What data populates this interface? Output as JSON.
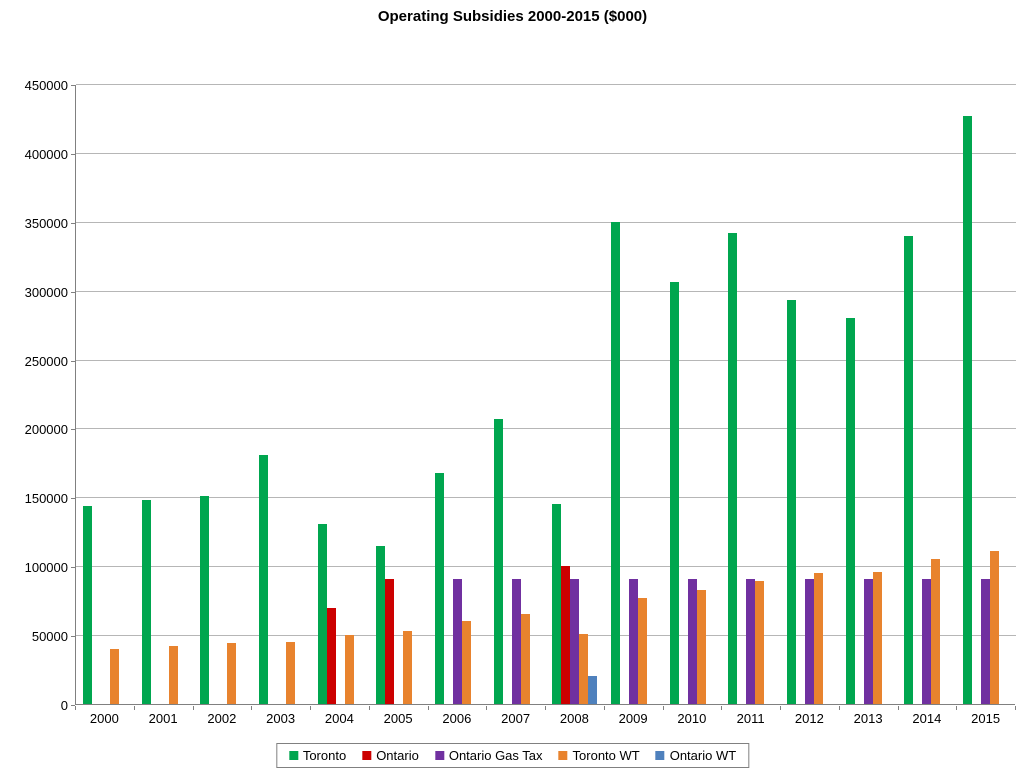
{
  "title": "Operating Subsidies 2000-2015 ($000)",
  "chart_data": {
    "type": "bar",
    "title": "Operating Subsidies 2000-2015 ($000)",
    "xlabel": "",
    "ylabel": "",
    "ylim": [
      0,
      450000
    ],
    "ytick_interval": 50000,
    "yticks": [
      0,
      50000,
      100000,
      150000,
      200000,
      250000,
      300000,
      350000,
      400000,
      450000
    ],
    "grid": true,
    "legend_position": "bottom",
    "categories": [
      "2000",
      "2001",
      "2002",
      "2003",
      "2004",
      "2005",
      "2006",
      "2007",
      "2008",
      "2009",
      "2010",
      "2011",
      "2012",
      "2013",
      "2014",
      "2015"
    ],
    "series": [
      {
        "name": "Toronto",
        "color": "#00A64F",
        "values": [
          144000,
          148000,
          151000,
          181000,
          131000,
          115000,
          168000,
          207000,
          145000,
          350000,
          306000,
          342000,
          293000,
          280000,
          340000,
          427000
        ]
      },
      {
        "name": "Ontario",
        "color": "#CC0000",
        "values": [
          0,
          0,
          0,
          0,
          70000,
          91000,
          0,
          0,
          100000,
          0,
          0,
          0,
          0,
          0,
          0,
          0
        ]
      },
      {
        "name": "Ontario Gas Tax",
        "color": "#7030A0",
        "values": [
          0,
          0,
          0,
          0,
          0,
          0,
          91000,
          91000,
          91000,
          91000,
          91000,
          91000,
          91000,
          91000,
          91000,
          91000
        ]
      },
      {
        "name": "Toronto WT",
        "color": "#E8832E",
        "values": [
          40000,
          42000,
          44000,
          45000,
          50000,
          53000,
          60000,
          65000,
          51000,
          77000,
          83000,
          89000,
          95000,
          96000,
          105000,
          111000
        ]
      },
      {
        "name": "Ontario WT",
        "color": "#4F81BD",
        "values": [
          0,
          0,
          0,
          0,
          0,
          0,
          0,
          0,
          20000,
          0,
          0,
          0,
          0,
          0,
          0,
          0
        ]
      }
    ]
  },
  "colors": {
    "gridline": "#b6b6b6",
    "axis": "#808080",
    "background": "#ffffff"
  }
}
